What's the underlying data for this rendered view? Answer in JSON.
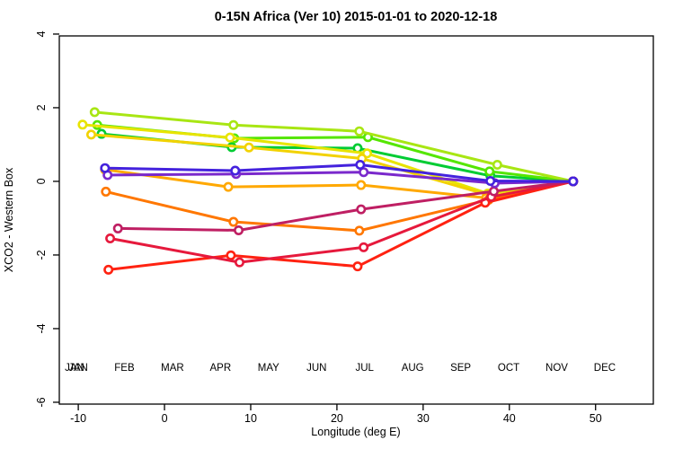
{
  "figure": {
    "background": "#FFFFFF",
    "axis_color": "#000000"
  },
  "chart_data": {
    "type": "line",
    "title": "0-15N Africa (Ver 10)   2015-01-01 to 2020-12-18",
    "xlabel": "Longitude (deg E)",
    "ylabel": "XCO2 - Western Box",
    "xlim": [
      -12.2,
      56.7
    ],
    "ylim": [
      -6.05,
      3.95
    ],
    "x_ticks": [
      -10,
      0,
      10,
      20,
      30,
      40,
      50
    ],
    "y_ticks": [
      -6,
      -4,
      -2,
      0,
      2,
      4
    ],
    "grid": false,
    "marker": "open-circle",
    "legend_position": "bottom-inside-row",
    "legend_overprint_first": true,
    "series": [
      {
        "name": "JAN",
        "color": "#00CC33",
        "points": [
          [
            -7.3,
            1.29
          ],
          [
            7.8,
            0.93
          ],
          [
            22.4,
            0.9
          ],
          [
            37.8,
            0.15
          ],
          [
            47.4,
            0.0
          ]
        ]
      },
      {
        "name": "FEB",
        "color": "#55E600",
        "points": [
          [
            -7.8,
            1.53
          ],
          [
            8.1,
            1.17
          ],
          [
            23.6,
            1.2
          ],
          [
            37.7,
            0.27
          ],
          [
            47.4,
            0.0
          ]
        ]
      },
      {
        "name": "MAR",
        "color": "#A8E613",
        "points": [
          [
            -8.1,
            1.88
          ],
          [
            8.0,
            1.53
          ],
          [
            22.6,
            1.36
          ],
          [
            38.6,
            0.45
          ],
          [
            47.4,
            0.0
          ]
        ]
      },
      {
        "name": "APR",
        "color": "#E8E400",
        "points": [
          [
            -9.5,
            1.54
          ],
          [
            7.6,
            1.19
          ],
          [
            23.5,
            0.76
          ],
          [
            37.5,
            -0.33
          ],
          [
            47.4,
            0.0
          ]
        ]
      },
      {
        "name": "MAY",
        "color": "#F2D200",
        "points": [
          [
            -8.5,
            1.27
          ],
          [
            9.8,
            0.92
          ],
          [
            22.9,
            0.62
          ],
          [
            38.0,
            -0.4
          ],
          [
            47.4,
            0.0
          ]
        ]
      },
      {
        "name": "JUN",
        "color": "#FFA800",
        "points": [
          [
            -6.9,
            0.32
          ],
          [
            7.4,
            -0.15
          ],
          [
            22.8,
            -0.1
          ],
          [
            37.3,
            -0.45
          ],
          [
            47.4,
            0.0
          ]
        ]
      },
      {
        "name": "JUL",
        "color": "#FF7700",
        "points": [
          [
            -6.8,
            -0.28
          ],
          [
            8.0,
            -1.1
          ],
          [
            22.6,
            -1.34
          ],
          [
            37.6,
            -0.5
          ],
          [
            47.4,
            0.0
          ]
        ]
      },
      {
        "name": "AUG",
        "color": "#FF2211",
        "points": [
          [
            -6.5,
            -2.4
          ],
          [
            7.7,
            -2.01
          ],
          [
            22.4,
            -2.31
          ],
          [
            37.2,
            -0.58
          ],
          [
            47.4,
            0.0
          ]
        ]
      },
      {
        "name": "SEP",
        "color": "#E6193C",
        "points": [
          [
            -6.3,
            -1.55
          ],
          [
            8.7,
            -2.2
          ],
          [
            23.1,
            -1.79
          ],
          [
            37.9,
            -0.42
          ],
          [
            47.4,
            0.0
          ]
        ]
      },
      {
        "name": "OCT",
        "color": "#BF1F63",
        "points": [
          [
            -5.4,
            -1.28
          ],
          [
            8.6,
            -1.33
          ],
          [
            22.8,
            -0.76
          ],
          [
            38.2,
            -0.27
          ],
          [
            47.4,
            0.0
          ]
        ]
      },
      {
        "name": "NOV",
        "color": "#7A29CC",
        "points": [
          [
            -6.6,
            0.17
          ],
          [
            8.3,
            0.2
          ],
          [
            23.1,
            0.25
          ],
          [
            38.3,
            -0.05
          ],
          [
            47.4,
            0.0
          ]
        ]
      },
      {
        "name": "DEC",
        "color": "#4422DD",
        "points": [
          [
            -6.9,
            0.36
          ],
          [
            8.2,
            0.29
          ],
          [
            22.7,
            0.45
          ],
          [
            37.8,
            0.01
          ],
          [
            47.4,
            0.0
          ]
        ]
      }
    ]
  }
}
